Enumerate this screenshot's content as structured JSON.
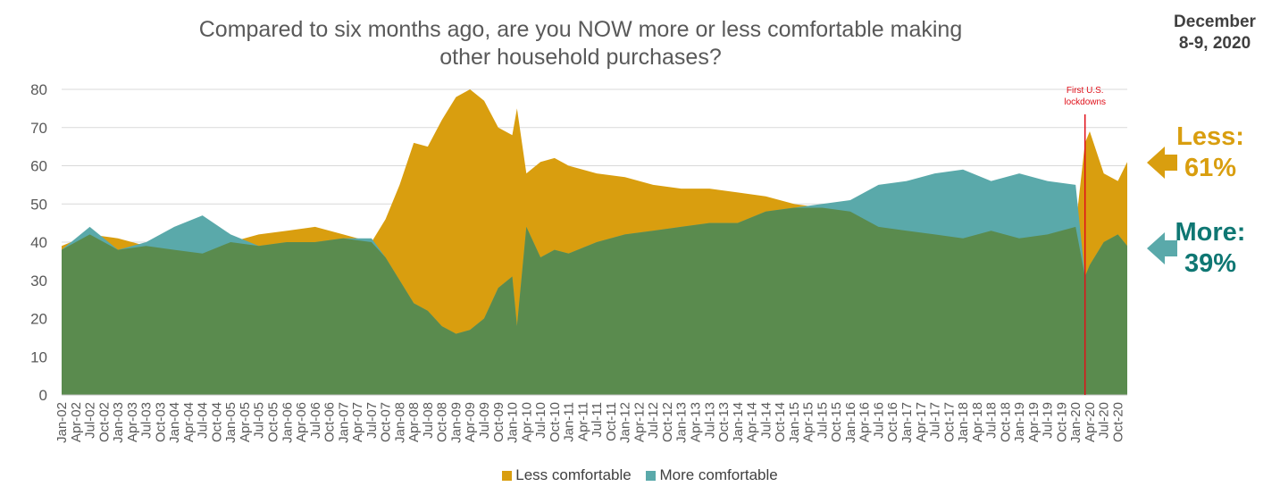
{
  "header": {
    "title_line1": "Compared to six months ago, are you NOW more or less comfortable making",
    "title_line2": "other household purchases?",
    "date_line1": "December",
    "date_line2": "8-9, 2020"
  },
  "callouts": {
    "less_label": "Less:",
    "less_value": "61%",
    "more_label": "More:",
    "more_value": "39%"
  },
  "colors": {
    "less": "#d99e0f",
    "more": "#5aa9aa",
    "base": "#5a8b4e",
    "annotation": "#e0101a",
    "grid": "#d9d9d9",
    "axis_text": "#595959",
    "more_callout": "#0f7773"
  },
  "chart_data": {
    "type": "area",
    "title": "Compared to six months ago, are you NOW more or less comfortable making other household purchases?",
    "xlabel": "",
    "ylabel": "",
    "ylim": [
      0,
      80
    ],
    "yticks": [
      0,
      10,
      20,
      30,
      40,
      50,
      60,
      70,
      80
    ],
    "grid": true,
    "legend_position": "bottom",
    "x_start": "Jan-02",
    "x_end": "Dec-20",
    "xtick_labels": [
      "Jan-02",
      "Apr-02",
      "Jul-02",
      "Oct-02",
      "Jan-03",
      "Apr-03",
      "Jul-03",
      "Oct-03",
      "Jan-04",
      "Apr-04",
      "Jul-04",
      "Oct-04",
      "Jan-05",
      "Apr-05",
      "Jul-05",
      "Oct-05",
      "Jan-06",
      "Apr-06",
      "Jul-06",
      "Oct-06",
      "Jan-07",
      "Apr-07",
      "Jul-07",
      "Oct-07",
      "Jan-08",
      "Apr-08",
      "Jul-08",
      "Oct-08",
      "Jan-09",
      "Apr-09",
      "Jul-09",
      "Oct-09",
      "Jan-10",
      "Apr-10",
      "Jul-10",
      "Oct-10",
      "Jan-11",
      "Apr-11",
      "Jul-11",
      "Oct-11",
      "Jan-12",
      "Apr-12",
      "Jul-12",
      "Oct-12",
      "Jan-13",
      "Apr-13",
      "Jul-13",
      "Oct-13",
      "Jan-14",
      "Apr-14",
      "Jul-14",
      "Oct-14",
      "Jan-15",
      "Apr-15",
      "Jul-15",
      "Oct-15",
      "Jan-16",
      "Apr-16",
      "Jul-16",
      "Oct-16",
      "Jan-17",
      "Apr-17",
      "Jul-17",
      "Oct-17",
      "Jan-18",
      "Apr-18",
      "Jul-18",
      "Oct-18",
      "Jan-19",
      "Apr-19",
      "Jul-19",
      "Oct-19",
      "Jan-20",
      "Apr-20",
      "Jul-20",
      "Oct-20"
    ],
    "x": [
      "Jan-02",
      "Jul-02",
      "Jan-03",
      "Jul-03",
      "Jan-04",
      "Jul-04",
      "Jan-05",
      "Jul-05",
      "Jan-06",
      "Jul-06",
      "Jan-07",
      "Jul-07",
      "Oct-07",
      "Jan-08",
      "Apr-08",
      "Jul-08",
      "Oct-08",
      "Jan-09",
      "Apr-09",
      "Jul-09",
      "Oct-09",
      "Jan-10",
      "Feb-10",
      "Apr-10",
      "Jul-10",
      "Oct-10",
      "Jan-11",
      "Jul-11",
      "Jan-12",
      "Jul-12",
      "Jan-13",
      "Jul-13",
      "Jan-14",
      "Jul-14",
      "Jan-15",
      "Jul-15",
      "Jan-16",
      "Jul-16",
      "Jan-17",
      "Jul-17",
      "Jan-18",
      "Jul-18",
      "Jan-19",
      "Jul-19",
      "Jan-20",
      "Mar-20",
      "Apr-20",
      "Jul-20",
      "Oct-20",
      "Dec-20"
    ],
    "series": [
      {
        "name": "Less comfortable",
        "values": [
          39,
          42,
          41,
          39,
          38,
          37,
          40,
          42,
          43,
          44,
          42,
          40,
          46,
          55,
          66,
          65,
          72,
          78,
          80,
          77,
          70,
          68,
          75,
          58,
          61,
          62,
          60,
          58,
          57,
          55,
          54,
          54,
          53,
          52,
          50,
          49,
          48,
          44,
          43,
          42,
          41,
          43,
          41,
          42,
          44,
          66,
          69,
          58,
          56,
          61
        ]
      },
      {
        "name": "More comfortable",
        "values": [
          38,
          44,
          38,
          40,
          44,
          47,
          42,
          39,
          40,
          40,
          41,
          41,
          36,
          30,
          24,
          22,
          18,
          16,
          17,
          20,
          28,
          31,
          18,
          44,
          36,
          38,
          37,
          40,
          42,
          43,
          44,
          45,
          45,
          48,
          49,
          50,
          51,
          55,
          56,
          58,
          59,
          56,
          58,
          56,
          55,
          31,
          34,
          40,
          42,
          39
        ]
      }
    ],
    "annotations": [
      {
        "text_line1": "First U.S.",
        "text_line2": "lockdowns",
        "x": "Mar-20"
      }
    ]
  },
  "legend": {
    "less_label": "Less comfortable",
    "more_label": "More comfortable"
  }
}
